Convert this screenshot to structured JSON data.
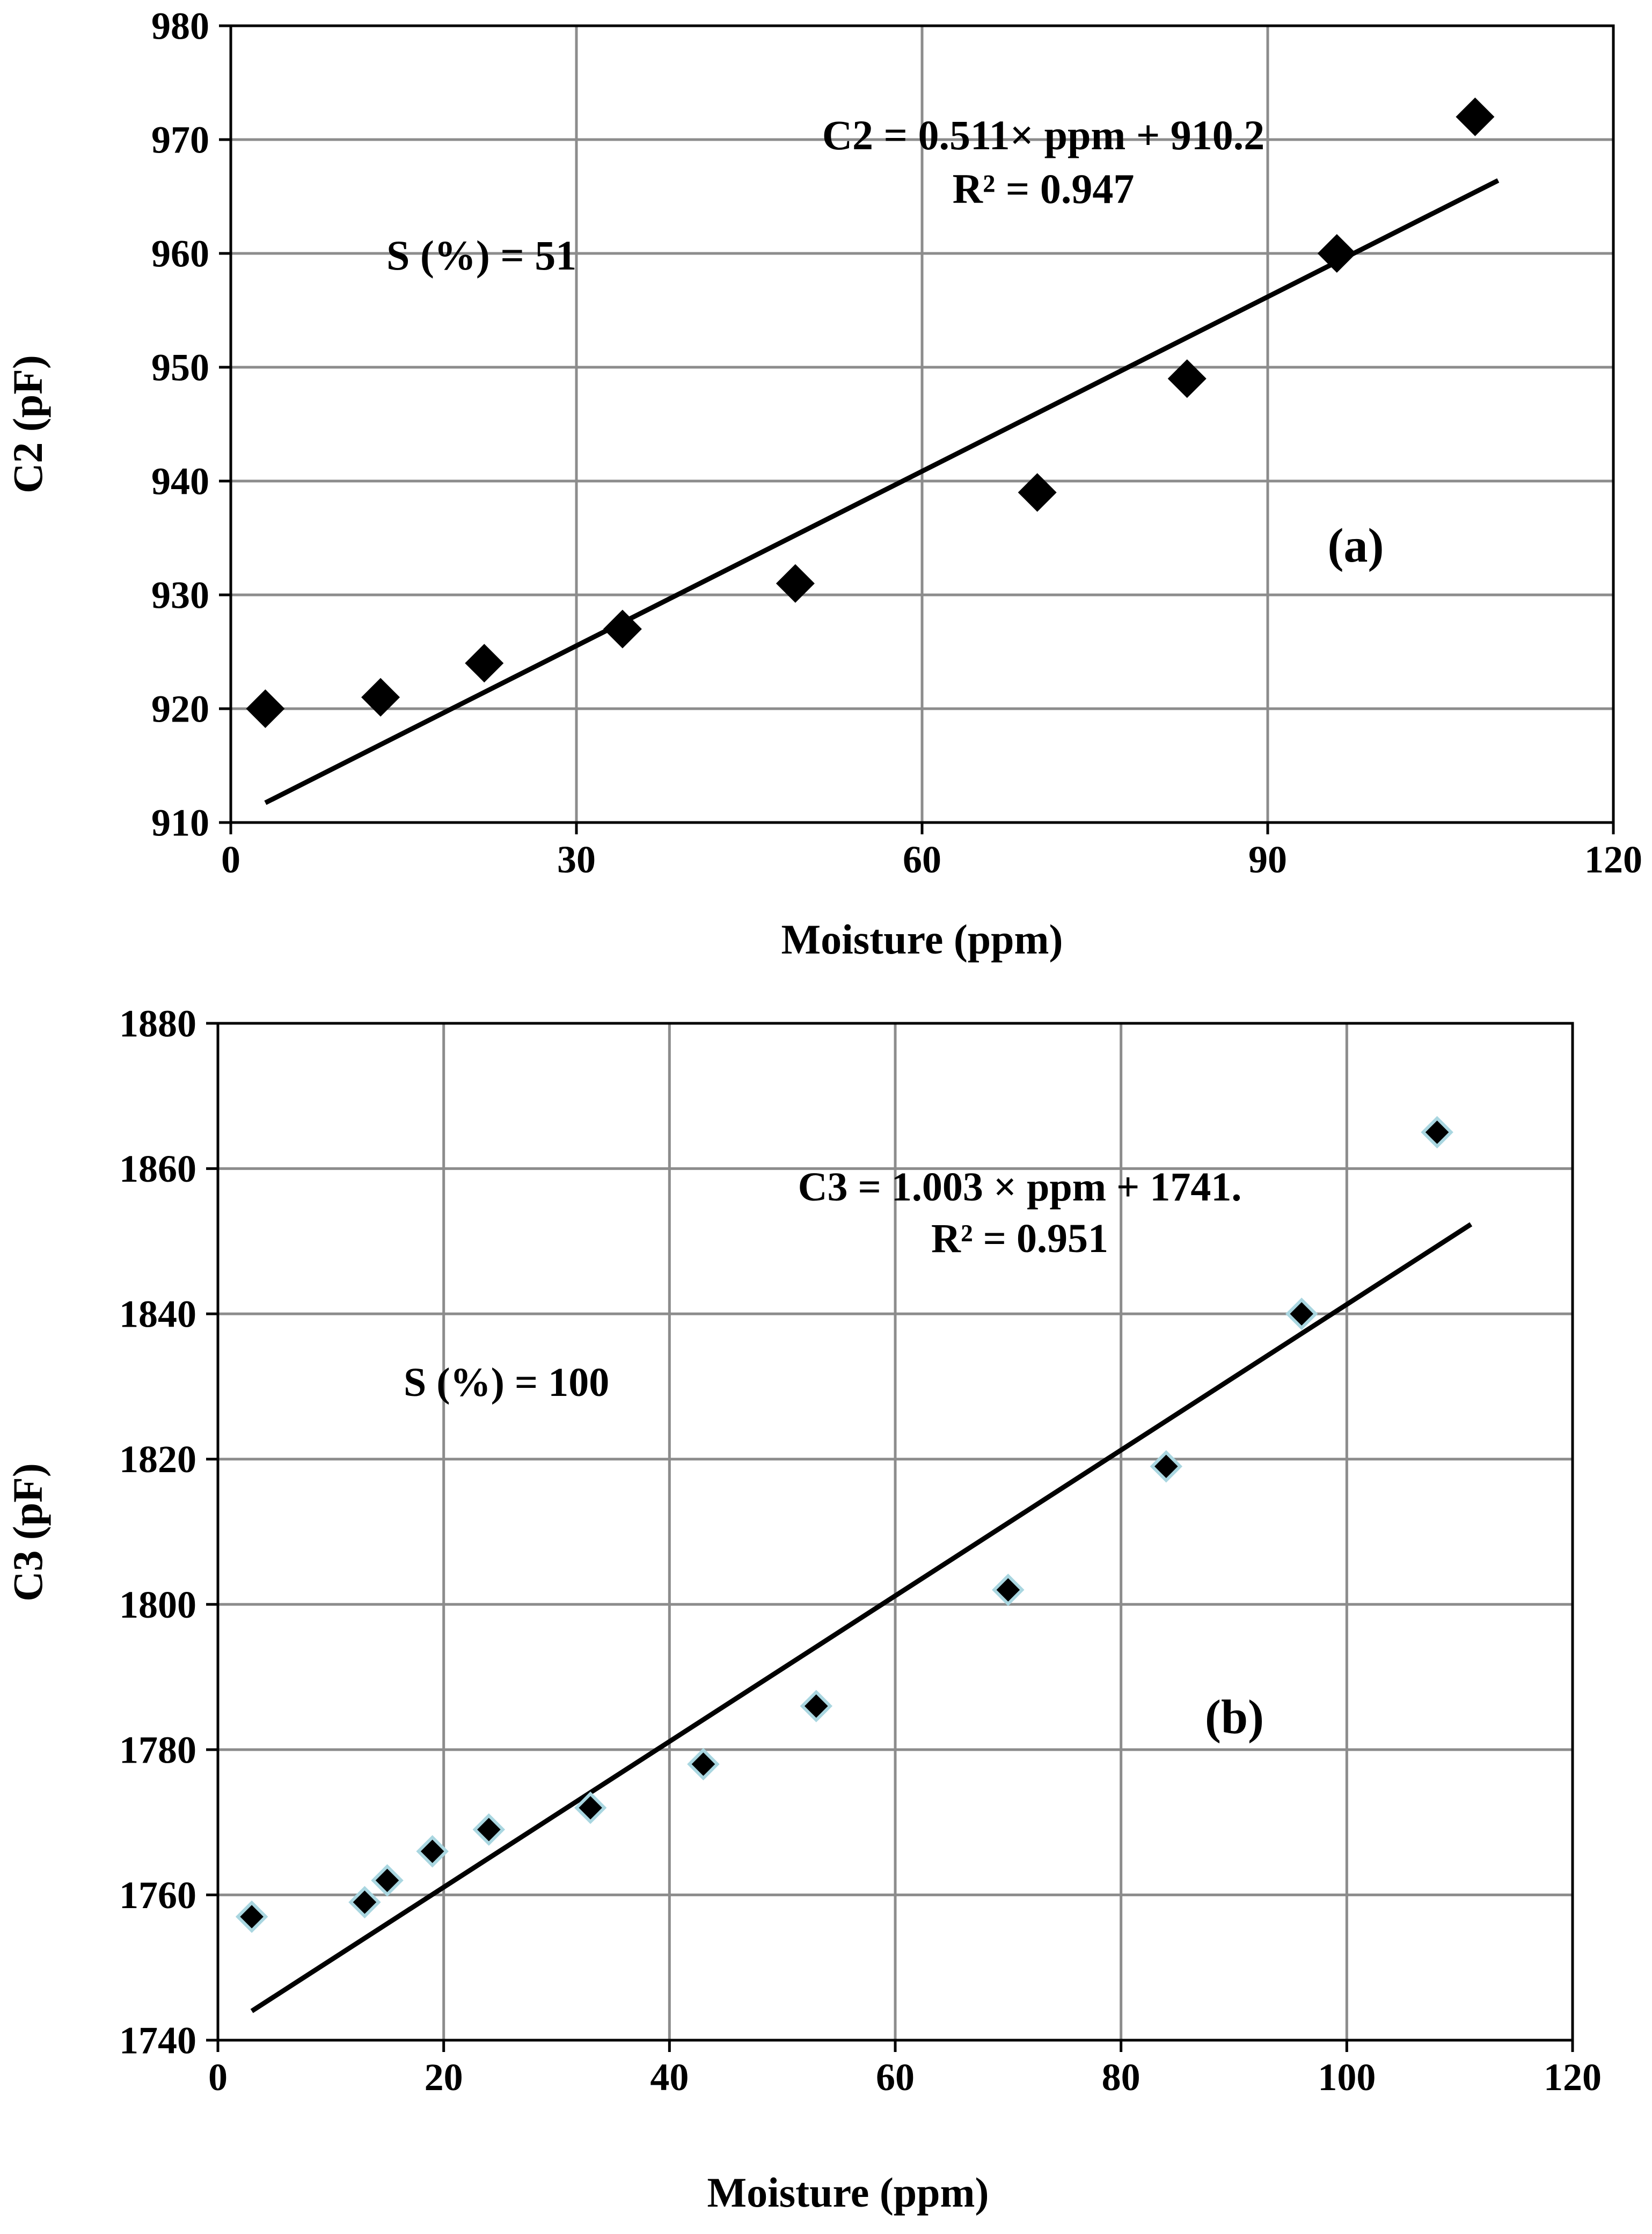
{
  "chart_data": [
    {
      "panel_id": "a",
      "type": "scatter",
      "title": "",
      "xlabel": "Moisture (ppm)",
      "ylabel": "C2 (pF)",
      "xlim": [
        0,
        120
      ],
      "ylim": [
        910,
        980
      ],
      "xticks": [
        0,
        30,
        60,
        90,
        120
      ],
      "yticks": [
        910,
        920,
        930,
        940,
        950,
        960,
        970,
        980
      ],
      "grid": true,
      "series": [
        {
          "name": "C2",
          "marker": "diamond",
          "color": "#000000",
          "x": [
            3,
            13,
            22,
            34,
            49,
            70,
            83,
            96,
            108
          ],
          "y": [
            920,
            921,
            924,
            927,
            931,
            939,
            949,
            960,
            972
          ]
        }
      ],
      "trendline": {
        "slope": 0.511,
        "intercept": 910.2,
        "x_range": [
          3,
          110
        ]
      },
      "annotations": {
        "equation": "C2 = 0.511× ppm + 910.2",
        "r_squared": "R² = 0.947",
        "sensitivity": "S (%) = 51",
        "panel_label": "(a)"
      }
    },
    {
      "panel_id": "b",
      "type": "scatter",
      "title": "",
      "xlabel": "Moisture (ppm)",
      "ylabel": "C3 (pF)",
      "xlim": [
        0,
        120
      ],
      "ylim": [
        1740,
        1880
      ],
      "xticks": [
        0,
        20,
        40,
        60,
        80,
        100,
        120
      ],
      "yticks": [
        1740,
        1760,
        1780,
        1800,
        1820,
        1840,
        1860,
        1880
      ],
      "grid": true,
      "series": [
        {
          "name": "C3",
          "marker": "diamond",
          "color": "#000000",
          "outline_color": "#a9d6e0",
          "x": [
            3,
            13,
            15,
            19,
            24,
            33,
            43,
            53,
            70,
            84,
            96,
            108
          ],
          "y": [
            1757,
            1759,
            1762,
            1766,
            1769,
            1772,
            1778,
            1786,
            1802,
            1819,
            1840,
            1865
          ]
        }
      ],
      "trendline": {
        "slope": 1.003,
        "intercept": 1741,
        "x_range": [
          3,
          111
        ]
      },
      "annotations": {
        "equation": "C3 = 1.003 × ppm + 1741.",
        "r_squared": "R² = 0.951",
        "sensitivity": "S (%) = 100",
        "panel_label": "(b)"
      }
    }
  ]
}
